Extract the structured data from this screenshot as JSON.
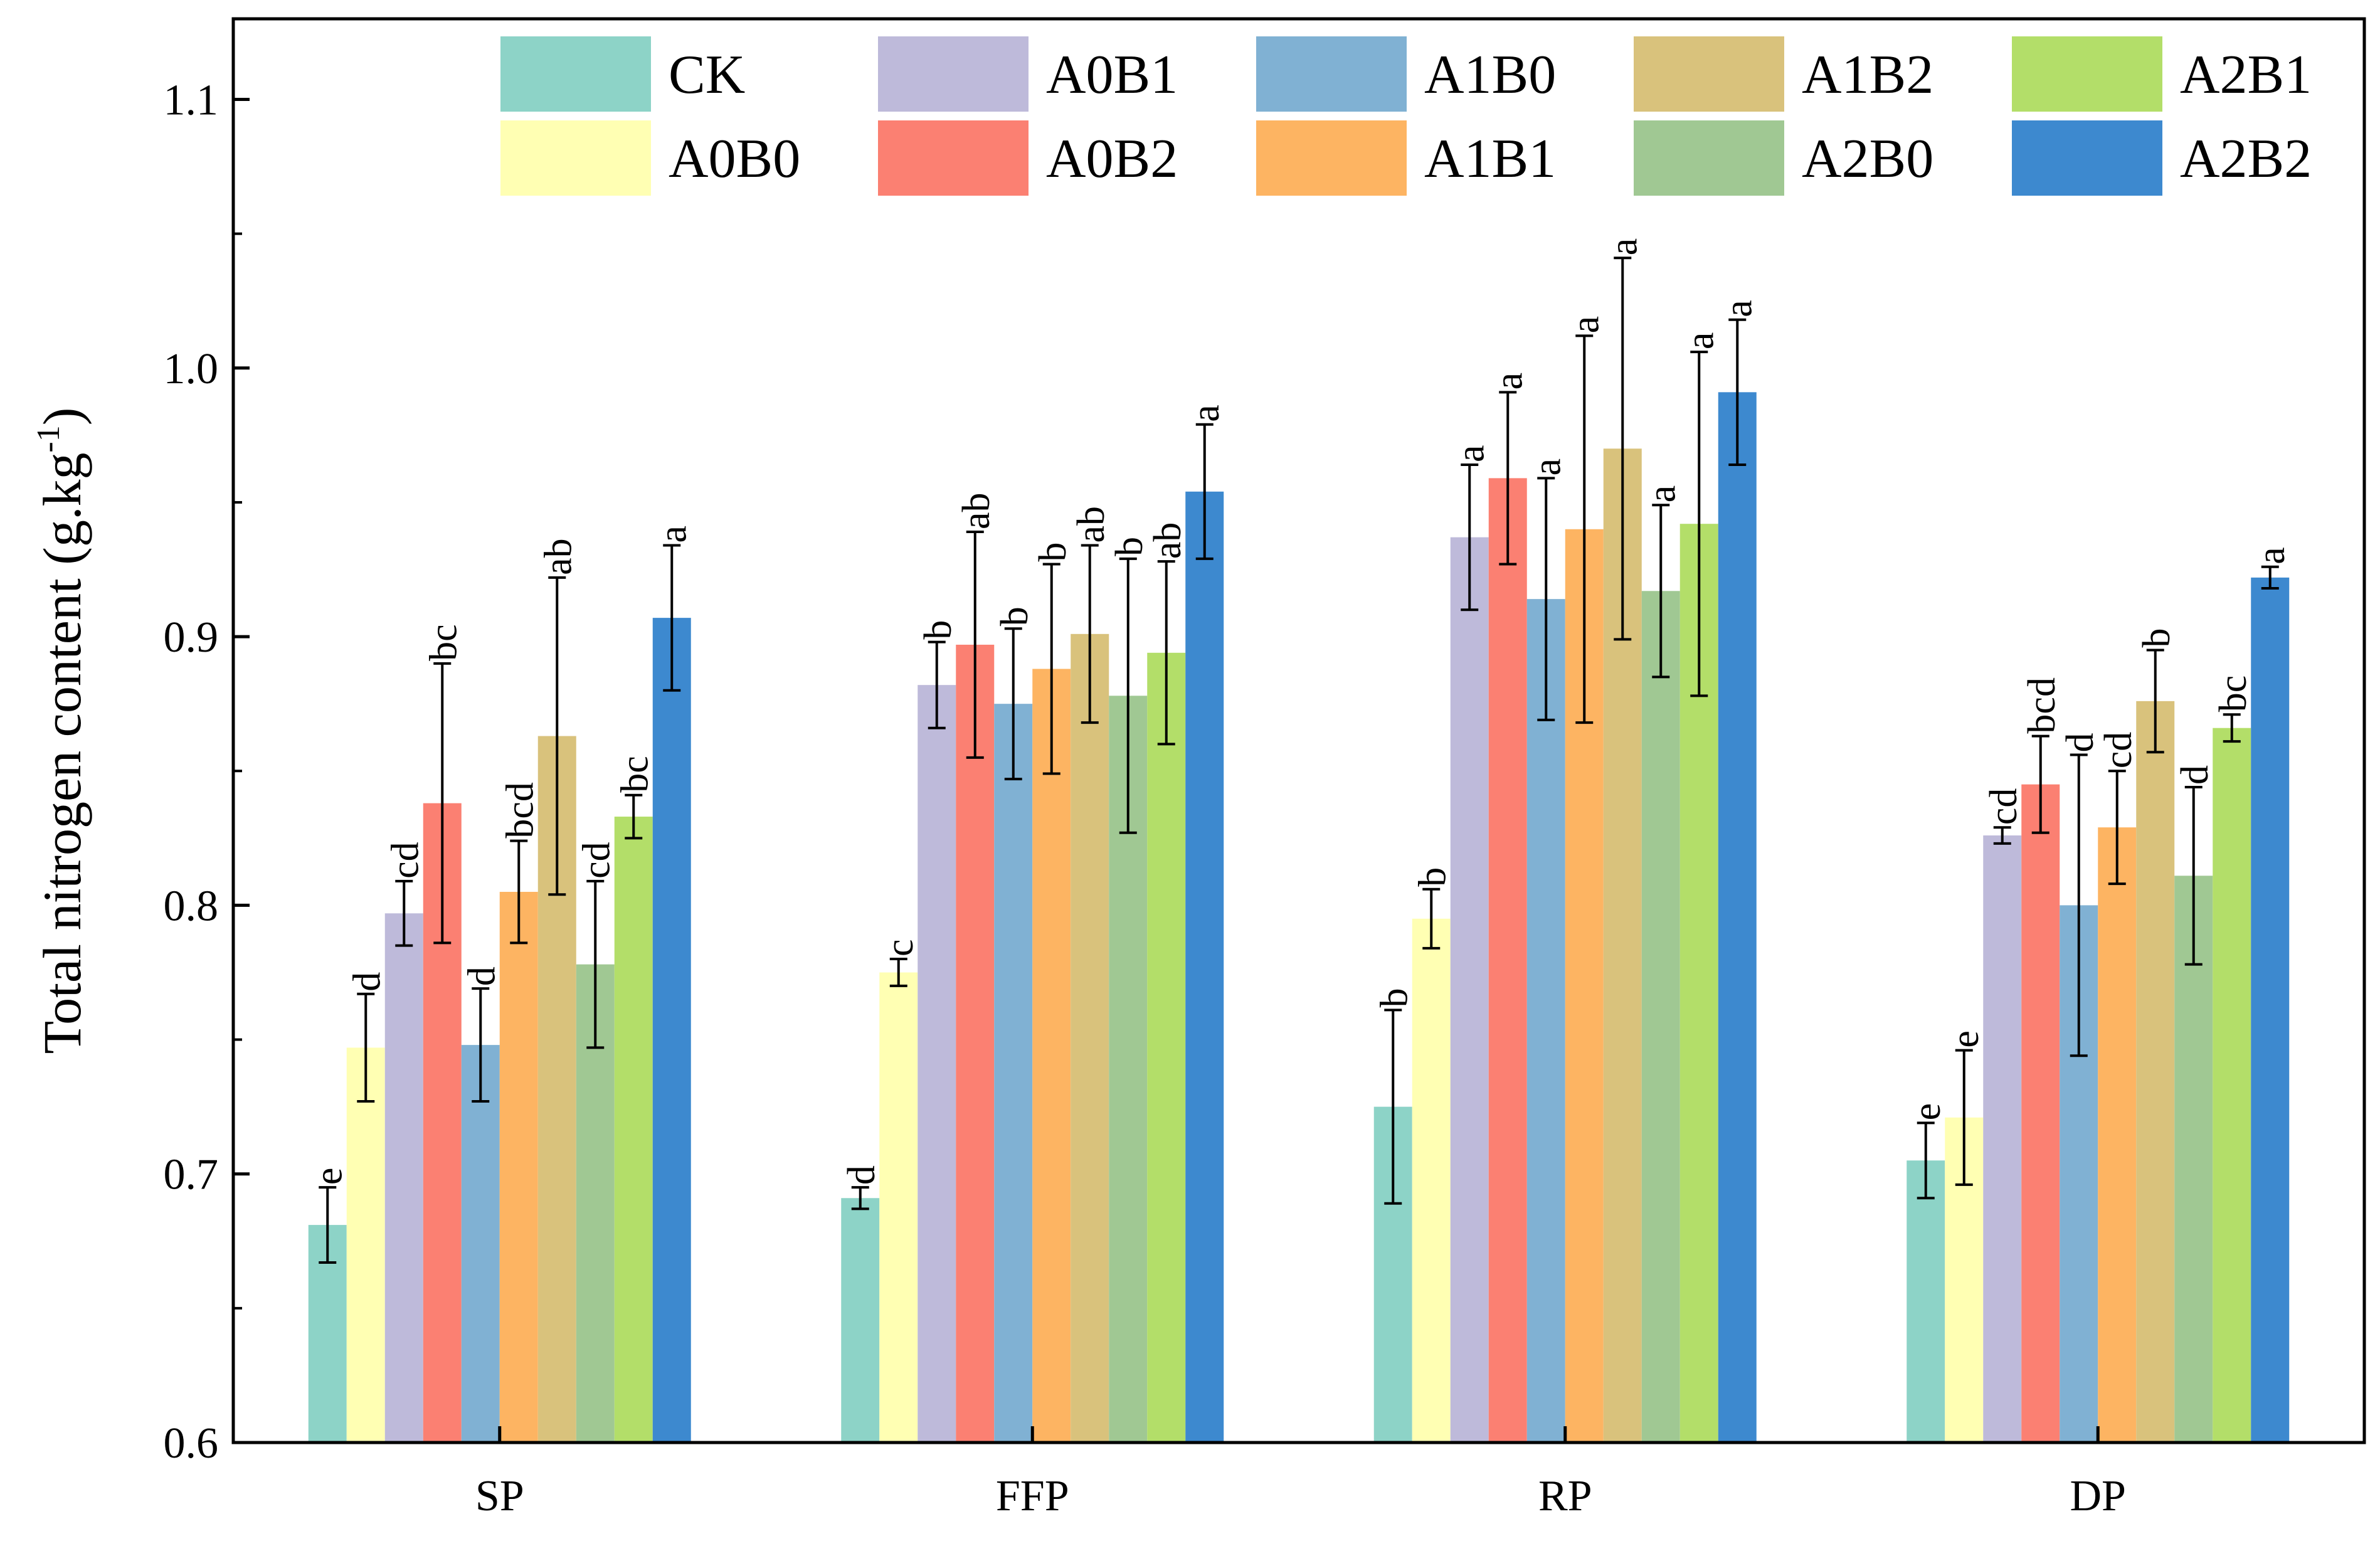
{
  "chart_data": {
    "type": "bar",
    "title": "",
    "xlabel": "",
    "ylabel": {
      "prefix": "Total nitrogen content (g.kg",
      "sup": "-1",
      "suffix": ")"
    },
    "ylim": [
      0.6,
      1.13
    ],
    "yticks": [
      0.6,
      0.7,
      0.8,
      0.9,
      1.0,
      1.1
    ],
    "ytick_labels": [
      "0.6",
      "0.7",
      "0.8",
      "0.9",
      "1.0",
      "1.1"
    ],
    "yminor_step": 0.05,
    "grid": false,
    "legend_position": "top-right",
    "categories": [
      "SP",
      "FFP",
      "RP",
      "DP"
    ],
    "series": [
      {
        "name": "CK",
        "color": "#8dd3c7",
        "values": [
          0.681,
          0.691,
          0.725,
          0.705
        ],
        "errors": [
          0.014,
          0.004,
          0.036,
          0.014
        ],
        "letters": [
          "e",
          "d",
          "b",
          "e"
        ]
      },
      {
        "name": "A0B0",
        "color": "#ffffb3",
        "values": [
          0.747,
          0.775,
          0.795,
          0.721
        ],
        "errors": [
          0.02,
          0.005,
          0.011,
          0.025
        ],
        "letters": [
          "d",
          "c",
          "b",
          "e"
        ]
      },
      {
        "name": "A0B1",
        "color": "#bebada",
        "values": [
          0.797,
          0.882,
          0.937,
          0.826
        ],
        "errors": [
          0.012,
          0.016,
          0.027,
          0.003
        ],
        "letters": [
          "cd",
          "b",
          "a",
          "cd"
        ]
      },
      {
        "name": "A0B2",
        "color": "#fb8072",
        "values": [
          0.838,
          0.897,
          0.959,
          0.845
        ],
        "errors": [
          0.052,
          0.042,
          0.032,
          0.018
        ],
        "letters": [
          "bc",
          "ab",
          "a",
          "bcd"
        ]
      },
      {
        "name": "A1B0",
        "color": "#80b1d3",
        "values": [
          0.748,
          0.875,
          0.914,
          0.8
        ],
        "errors": [
          0.021,
          0.028,
          0.045,
          0.056
        ],
        "letters": [
          "d",
          "b",
          "a",
          "d"
        ]
      },
      {
        "name": "A1B1",
        "color": "#fdb462",
        "values": [
          0.805,
          0.888,
          0.94,
          0.829
        ],
        "errors": [
          0.019,
          0.039,
          0.072,
          0.021
        ],
        "letters": [
          "bcd",
          "b",
          "a",
          "cd"
        ]
      },
      {
        "name": "A1B2",
        "color": "#d9c27c",
        "values": [
          0.863,
          0.901,
          0.97,
          0.876
        ],
        "errors": [
          0.059,
          0.033,
          0.071,
          0.019
        ],
        "letters": [
          "ab",
          "ab",
          "a",
          "b"
        ]
      },
      {
        "name": "A2B0",
        "color": "#a0c893",
        "values": [
          0.778,
          0.878,
          0.917,
          0.811
        ],
        "errors": [
          0.031,
          0.051,
          0.032,
          0.033
        ],
        "letters": [
          "cd",
          "b",
          "a",
          "d"
        ]
      },
      {
        "name": "A2B1",
        "color": "#b3de69",
        "values": [
          0.833,
          0.894,
          0.942,
          0.866
        ],
        "errors": [
          0.008,
          0.034,
          0.064,
          0.005
        ],
        "letters": [
          "bc",
          "ab",
          "a",
          "bc"
        ]
      },
      {
        "name": "A2B2",
        "color": "#3d89cf",
        "values": [
          0.907,
          0.954,
          0.991,
          0.922
        ],
        "errors": [
          0.027,
          0.025,
          0.027,
          0.004
        ],
        "letters": [
          "a",
          "a",
          "a",
          "a"
        ]
      }
    ]
  }
}
